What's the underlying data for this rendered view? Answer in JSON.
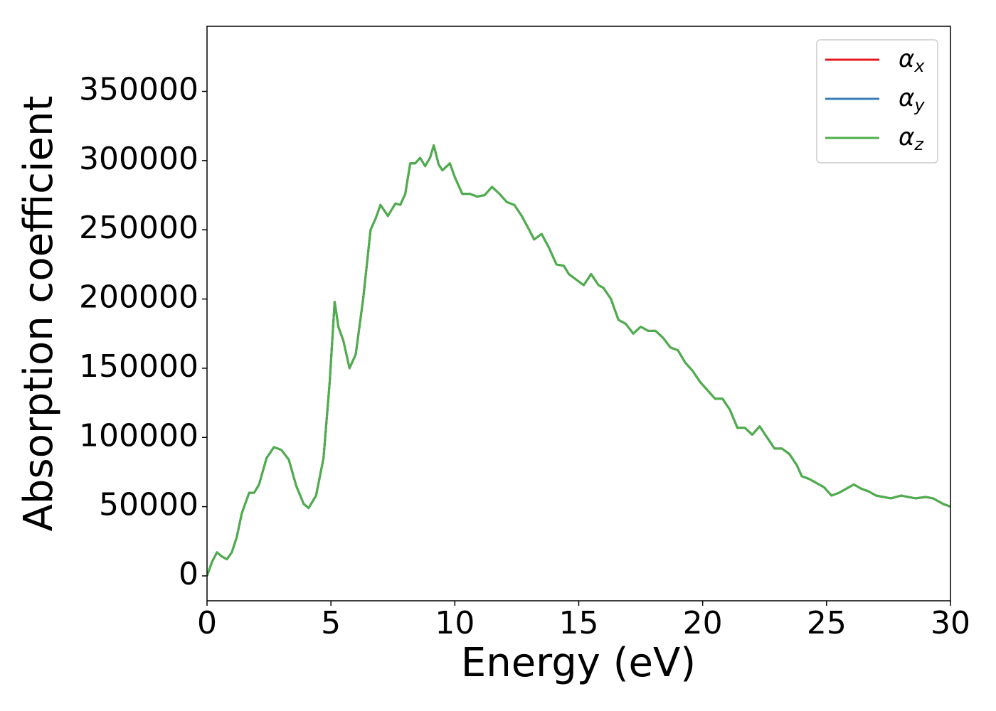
{
  "chart_data": {
    "type": "line",
    "xlabel": "Energy (eV)",
    "ylabel": "Absorption coefficient",
    "x": [
      0,
      0.2,
      0.4,
      0.6,
      0.8,
      1.0,
      1.2,
      1.4,
      1.7,
      1.9,
      2.1,
      2.4,
      2.7,
      3.0,
      3.3,
      3.6,
      3.9,
      4.1,
      4.4,
      4.7,
      4.95,
      5.15,
      5.3,
      5.5,
      5.75,
      6.0,
      6.3,
      6.6,
      6.8,
      7.0,
      7.3,
      7.6,
      7.8,
      8.0,
      8.2,
      8.4,
      8.6,
      8.8,
      9.0,
      9.15,
      9.35,
      9.5,
      9.8,
      10.0,
      10.3,
      10.6,
      10.9,
      11.2,
      11.5,
      11.8,
      12.1,
      12.4,
      12.7,
      13.0,
      13.2,
      13.5,
      13.8,
      14.1,
      14.4,
      14.6,
      14.9,
      15.2,
      15.5,
      15.8,
      16.0,
      16.3,
      16.6,
      16.9,
      17.2,
      17.5,
      17.8,
      18.1,
      18.4,
      18.7,
      19.0,
      19.3,
      19.6,
      19.9,
      20.2,
      20.5,
      20.8,
      21.1,
      21.4,
      21.7,
      22.0,
      22.3,
      22.6,
      22.9,
      23.2,
      23.5,
      23.8,
      24.0,
      24.3,
      24.6,
      24.9,
      25.2,
      25.5,
      25.8,
      26.1,
      26.4,
      26.7,
      27.0,
      27.3,
      27.6,
      28.0,
      28.3,
      28.6,
      29.0,
      29.3,
      29.7,
      30.0
    ],
    "series": [
      {
        "name": "αx",
        "color": "#e41a1c",
        "values": [
          0,
          10000,
          17000,
          14000,
          12000,
          17000,
          28000,
          45000,
          60000,
          60000,
          66000,
          85000,
          93000,
          91000,
          84000,
          65000,
          52000,
          49000,
          58000,
          85000,
          140000,
          198000,
          180000,
          170000,
          150000,
          160000,
          200000,
          250000,
          258000,
          268000,
          260000,
          269000,
          268000,
          276000,
          298000,
          298000,
          302000,
          296000,
          302000,
          311000,
          297000,
          293000,
          298000,
          288000,
          276000,
          276000,
          274000,
          275000,
          281000,
          276000,
          270000,
          268000,
          260000,
          250000,
          243000,
          247000,
          237000,
          225000,
          224000,
          218000,
          214000,
          210000,
          218000,
          210000,
          208000,
          200000,
          185000,
          182000,
          175000,
          180000,
          177000,
          177000,
          172000,
          165000,
          163000,
          154000,
          148000,
          140000,
          134000,
          128000,
          128000,
          120000,
          107000,
          107000,
          102000,
          108000,
          100000,
          92000,
          92000,
          88000,
          80000,
          72000,
          70000,
          67000,
          64000,
          58000,
          60000,
          63000,
          66000,
          63000,
          61000,
          58000,
          57000,
          56000,
          58000,
          57000,
          56000,
          57000,
          56000,
          52000,
          50000
        ]
      },
      {
        "name": "αy",
        "color": "#377eb8",
        "values": [
          0,
          10000,
          17000,
          14000,
          12000,
          17000,
          28000,
          45000,
          60000,
          60000,
          66000,
          85000,
          93000,
          91000,
          84000,
          65000,
          52000,
          49000,
          58000,
          85000,
          140000,
          198000,
          180000,
          170000,
          150000,
          160000,
          200000,
          250000,
          258000,
          268000,
          260000,
          269000,
          268000,
          276000,
          298000,
          298000,
          302000,
          296000,
          302000,
          311000,
          297000,
          293000,
          298000,
          288000,
          276000,
          276000,
          274000,
          275000,
          281000,
          276000,
          270000,
          268000,
          260000,
          250000,
          243000,
          247000,
          237000,
          225000,
          224000,
          218000,
          214000,
          210000,
          218000,
          210000,
          208000,
          200000,
          185000,
          182000,
          175000,
          180000,
          177000,
          177000,
          172000,
          165000,
          163000,
          154000,
          148000,
          140000,
          134000,
          128000,
          128000,
          120000,
          107000,
          107000,
          102000,
          108000,
          100000,
          92000,
          92000,
          88000,
          80000,
          72000,
          70000,
          67000,
          64000,
          58000,
          60000,
          63000,
          66000,
          63000,
          61000,
          58000,
          57000,
          56000,
          58000,
          57000,
          56000,
          57000,
          56000,
          52000,
          50000
        ]
      },
      {
        "name": "αz",
        "color": "#4daf4a",
        "values": [
          0,
          10000,
          17000,
          14000,
          12000,
          17000,
          28000,
          45000,
          60000,
          60000,
          66000,
          85000,
          93000,
          91000,
          84000,
          65000,
          52000,
          49000,
          58000,
          85000,
          140000,
          198000,
          180000,
          170000,
          150000,
          160000,
          200000,
          250000,
          258000,
          268000,
          260000,
          269000,
          268000,
          276000,
          298000,
          298000,
          302000,
          296000,
          302000,
          311000,
          297000,
          293000,
          298000,
          288000,
          276000,
          276000,
          274000,
          275000,
          281000,
          276000,
          270000,
          268000,
          260000,
          250000,
          243000,
          247000,
          237000,
          225000,
          224000,
          218000,
          214000,
          210000,
          218000,
          210000,
          208000,
          200000,
          185000,
          182000,
          175000,
          180000,
          177000,
          177000,
          172000,
          165000,
          163000,
          154000,
          148000,
          140000,
          134000,
          128000,
          128000,
          120000,
          107000,
          107000,
          102000,
          108000,
          100000,
          92000,
          92000,
          88000,
          80000,
          72000,
          70000,
          67000,
          64000,
          58000,
          60000,
          63000,
          66000,
          63000,
          61000,
          58000,
          57000,
          56000,
          58000,
          57000,
          56000,
          57000,
          56000,
          52000,
          50000
        ]
      }
    ],
    "xlim": [
      0,
      30
    ],
    "xticks": [
      0,
      5,
      10,
      15,
      20,
      25,
      30
    ],
    "ylim": [
      -18000,
      397000
    ],
    "yticks": [
      0,
      50000,
      100000,
      150000,
      200000,
      250000,
      300000,
      350000
    ],
    "grid": false,
    "legend": "upper right"
  }
}
